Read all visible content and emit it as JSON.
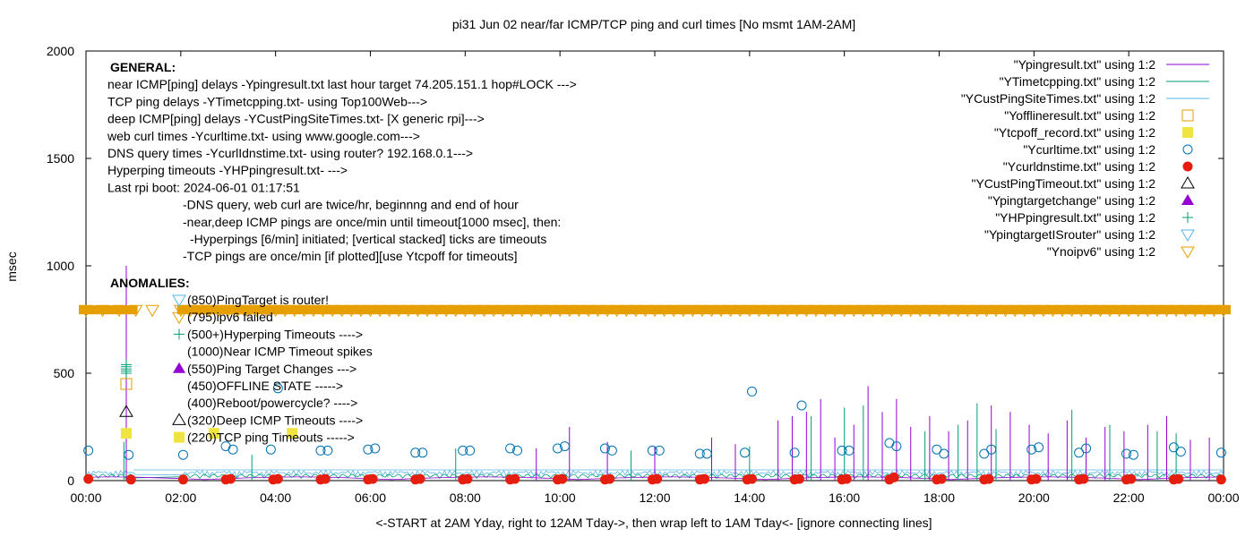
{
  "chart_data": {
    "type": "line",
    "title": "pi31 Jun 02  near/far ICMP/TCP ping and curl times [No msmt 1AM-2AM]",
    "xlabel": "<-START at 2AM Yday, right to 12AM Tday->, then wrap left to 1AM Tday<- [ignore connecting lines]",
    "ylabel": "msec",
    "xlim": [
      0,
      24
    ],
    "ylim": [
      0,
      2000
    ],
    "x_ticks": [
      "00:00",
      "02:00",
      "04:00",
      "06:00",
      "08:00",
      "10:00",
      "12:00",
      "14:00",
      "16:00",
      "18:00",
      "20:00",
      "22:00",
      "00:00"
    ],
    "y_ticks": [
      "0",
      "500",
      "1000",
      "1500",
      "2000"
    ],
    "legend_position": "top-right",
    "legend": [
      {
        "label": "\"Ypingresult.txt\" using 1:2",
        "kind": "line",
        "color": "#9400d3"
      },
      {
        "label": "\"YTimetcpping.txt\" using 1:2",
        "kind": "line",
        "color": "#009e73"
      },
      {
        "label": "\"YCustPingSiteTimes.txt\" using 1:2",
        "kind": "line",
        "color": "#56b4e9"
      },
      {
        "label": "\"Yofflineresult.txt\" using 1:2",
        "kind": "open-square",
        "color": "#e69f00"
      },
      {
        "label": "\"Ytcpoff_record.txt\" using 1:2",
        "kind": "filled-square",
        "color": "#f0e442"
      },
      {
        "label": "\"Ycurltime.txt\" using 1:2",
        "kind": "open-circle",
        "color": "#0072b2"
      },
      {
        "label": "\"Ycurldnstime.txt\" using 1:2",
        "kind": "filled-circle",
        "color": "#e51e10"
      },
      {
        "label": "\"YCustPingTimeout.txt\" using 1:2",
        "kind": "open-triangle",
        "color": "#000000"
      },
      {
        "label": "\"Ypingtargetchange\" using 1:2",
        "kind": "filled-triangle",
        "color": "#9400d3"
      },
      {
        "label": "\"YHPpingresult.txt\" using 1:2",
        "kind": "plus",
        "color": "#009e73"
      },
      {
        "label": "\"YpingtargetISrouter\" using 1:2",
        "kind": "open-down-triangle",
        "color": "#56b4e9"
      },
      {
        "label": "\"Ynoipv6\" using 1:2",
        "kind": "open-down-triangle",
        "color": "#e69f00"
      }
    ],
    "general_notes": [
      "GENERAL:",
      "near ICMP[ping] delays -Ypingresult.txt last hour target 74.205.151.1 hop#LOCK --->",
      "TCP ping delays -YTimetcpping.txt- using Top100Web--->",
      "deep ICMP[ping] delays -YCustPingSiteTimes.txt- [X generic rpi]--->",
      "web curl times -Ycurltime.txt- using www.google.com--->",
      "DNS query times -YcurlIdnstime.txt- using router? 192.168.0.1--->",
      "Hyperping timeouts -YHPpingresult.txt- --->",
      "Last rpi boot: 2024-06-01 01:17:51",
      "-DNS query, web curl are twice/hr, beginnng and end of hour",
      "-near,deep ICMP pings are once/min until timeout[1000 msec], then:",
      "-Hyperpings [6/min] initiated; [vertical stacked] ticks are timeouts",
      "-TCP pings are once/min [if plotted][use Ytcpoff for timeouts]"
    ],
    "anomalies_title": "ANOMALIES:",
    "anomalies": [
      {
        "text": "(850)PingTarget is router!",
        "marker": "open-down-triangle",
        "color": "#56b4e9"
      },
      {
        "text": "(795)ipv6 failed",
        "marker": "open-down-triangle",
        "color": "#e69f00"
      },
      {
        "text": "(500+)Hyperping Timeouts ---->",
        "marker": "plus",
        "color": "#009e73"
      },
      {
        "text": "(1000)Near ICMP Timeout spikes",
        "marker": "none",
        "color": "#9400d3"
      },
      {
        "text": "(550)Ping Target Changes --->",
        "marker": "filled-triangle",
        "color": "#9400d3"
      },
      {
        "text": "(450)OFFLINE STATE ----->",
        "marker": "none",
        "color": "#e69f00"
      },
      {
        "text": "(400)Reboot/powercycle? ---->",
        "marker": "none",
        "color": "#000000"
      },
      {
        "text": "(320)Deep ICMP Timeouts ---->",
        "marker": "open-triangle",
        "color": "#000000"
      },
      {
        "text": "(220)TCP ping Timeouts ----->",
        "marker": "filled-square",
        "color": "#f0e442"
      }
    ],
    "series_samples": {
      "noipv6_level": 795,
      "noipv6_x": [
        0.0,
        0.35,
        0.7,
        1.05,
        1.4,
        2.0,
        2.2,
        2.4,
        2.6,
        2.8,
        3.0,
        3.2,
        3.4,
        3.6,
        3.8,
        4.0,
        4.2,
        4.4,
        4.6,
        4.8,
        5.0,
        5.2,
        5.4,
        5.6,
        5.8,
        6.0,
        6.2,
        6.4,
        6.6,
        6.8,
        7.0,
        7.2,
        7.4,
        7.6,
        7.8,
        8.0,
        8.2,
        8.4,
        8.6,
        8.8,
        9.0,
        9.2,
        9.4,
        9.6,
        9.8,
        10.0,
        10.2,
        10.4,
        10.6,
        10.8,
        11.0,
        11.2,
        11.4,
        11.6,
        11.8,
        12.0,
        12.2,
        12.4,
        12.6,
        12.8,
        13.0,
        13.2,
        13.4,
        13.6,
        13.8,
        14.0,
        14.2,
        14.4,
        14.6,
        14.8,
        15.0,
        15.2,
        15.4,
        15.6,
        15.8,
        16.0,
        16.2,
        16.4,
        16.6,
        16.8,
        17.0,
        17.2,
        17.4,
        17.6,
        17.8,
        18.0,
        18.2,
        18.4,
        18.6,
        18.8,
        19.0,
        19.2,
        19.4,
        19.6,
        19.8,
        20.0,
        20.2,
        20.4,
        20.6,
        20.8,
        21.0,
        21.2,
        21.4,
        21.6,
        21.8,
        22.0,
        22.2,
        22.4,
        22.6,
        22.8,
        23.0,
        23.2,
        23.4,
        23.6,
        23.8,
        24.0
      ],
      "curl_points": [
        [
          0.05,
          140
        ],
        [
          0.9,
          120
        ],
        [
          2.05,
          120
        ],
        [
          2.95,
          160
        ],
        [
          3.1,
          145
        ],
        [
          3.9,
          145
        ],
        [
          4.05,
          430
        ],
        [
          4.95,
          140
        ],
        [
          5.1,
          140
        ],
        [
          5.95,
          145
        ],
        [
          6.1,
          150
        ],
        [
          6.95,
          130
        ],
        [
          7.1,
          130
        ],
        [
          7.95,
          140
        ],
        [
          8.1,
          140
        ],
        [
          8.95,
          150
        ],
        [
          9.1,
          140
        ],
        [
          9.95,
          150
        ],
        [
          10.1,
          160
        ],
        [
          10.95,
          150
        ],
        [
          11.1,
          140
        ],
        [
          11.95,
          140
        ],
        [
          12.1,
          140
        ],
        [
          12.95,
          125
        ],
        [
          13.1,
          125
        ],
        [
          13.9,
          130
        ],
        [
          14.05,
          415
        ],
        [
          14.95,
          130
        ],
        [
          15.1,
          350
        ],
        [
          15.95,
          140
        ],
        [
          16.1,
          140
        ],
        [
          16.95,
          175
        ],
        [
          17.1,
          160
        ],
        [
          17.95,
          145
        ],
        [
          18.1,
          125
        ],
        [
          18.95,
          125
        ],
        [
          19.1,
          145
        ],
        [
          19.95,
          145
        ],
        [
          20.1,
          155
        ],
        [
          20.95,
          130
        ],
        [
          21.1,
          150
        ],
        [
          21.95,
          125
        ],
        [
          22.1,
          120
        ],
        [
          22.95,
          155
        ],
        [
          23.1,
          135
        ],
        [
          23.95,
          130
        ]
      ],
      "dns_points": [
        [
          0.05,
          8
        ],
        [
          0.95,
          5
        ],
        [
          2.05,
          5
        ],
        [
          2.95,
          5
        ],
        [
          3.05,
          8
        ],
        [
          3.95,
          5
        ],
        [
          4.05,
          8
        ],
        [
          4.95,
          5
        ],
        [
          5.05,
          8
        ],
        [
          5.95,
          5
        ],
        [
          6.05,
          8
        ],
        [
          6.95,
          5
        ],
        [
          7.05,
          8
        ],
        [
          7.95,
          5
        ],
        [
          8.05,
          8
        ],
        [
          8.95,
          5
        ],
        [
          9.05,
          8
        ],
        [
          9.95,
          5
        ],
        [
          10.05,
          8
        ],
        [
          10.95,
          5
        ],
        [
          11.05,
          8
        ],
        [
          11.95,
          5
        ],
        [
          12.05,
          8
        ],
        [
          12.95,
          5
        ],
        [
          13.05,
          8
        ],
        [
          13.95,
          5
        ],
        [
          14.05,
          8
        ],
        [
          14.95,
          5
        ],
        [
          15.05,
          8
        ],
        [
          15.95,
          5
        ],
        [
          16.05,
          8
        ],
        [
          16.95,
          5
        ],
        [
          17.05,
          15
        ],
        [
          17.95,
          5
        ],
        [
          18.05,
          8
        ],
        [
          18.95,
          5
        ],
        [
          19.05,
          8
        ],
        [
          19.95,
          5
        ],
        [
          20.05,
          8
        ],
        [
          20.95,
          5
        ],
        [
          21.05,
          8
        ],
        [
          21.95,
          5
        ],
        [
          22.05,
          8
        ],
        [
          22.95,
          5
        ],
        [
          23.05,
          8
        ],
        [
          23.95,
          5
        ]
      ],
      "ping_spikes": [
        [
          0.85,
          1000
        ],
        [
          9.5,
          150
        ],
        [
          10.2,
          250
        ],
        [
          11.0,
          180
        ],
        [
          12.0,
          160
        ],
        [
          13.2,
          200
        ],
        [
          13.7,
          170
        ],
        [
          14.6,
          280
        ],
        [
          14.9,
          300
        ],
        [
          15.2,
          320
        ],
        [
          15.5,
          380
        ],
        [
          15.8,
          200
        ],
        [
          16.2,
          260
        ],
        [
          16.5,
          440
        ],
        [
          16.8,
          320
        ],
        [
          17.1,
          380
        ],
        [
          17.4,
          250
        ],
        [
          17.8,
          300
        ],
        [
          18.2,
          230
        ],
        [
          18.6,
          280
        ],
        [
          19.1,
          350
        ],
        [
          19.5,
          320
        ],
        [
          19.9,
          260
        ],
        [
          20.3,
          220
        ],
        [
          20.7,
          280
        ],
        [
          21.1,
          200
        ],
        [
          21.5,
          250
        ],
        [
          21.9,
          230
        ],
        [
          22.4,
          260
        ],
        [
          22.8,
          300
        ],
        [
          23.3,
          190
        ],
        [
          23.7,
          200
        ]
      ],
      "tcp_spikes": [
        [
          0.8,
          180
        ],
        [
          3.5,
          120
        ],
        [
          7.8,
          150
        ],
        [
          11.5,
          140
        ],
        [
          14.0,
          160
        ],
        [
          15.3,
          300
        ],
        [
          16.0,
          340
        ],
        [
          16.4,
          350
        ],
        [
          17.7,
          230
        ],
        [
          18.4,
          260
        ],
        [
          18.8,
          360
        ],
        [
          19.2,
          240
        ],
        [
          20.8,
          330
        ],
        [
          21.6,
          260
        ],
        [
          22.6,
          230
        ],
        [
          23.0,
          220
        ]
      ],
      "hyperping_x": 0.85,
      "hyperping_y": [
        500,
        510,
        520,
        530,
        540
      ],
      "offline_point": [
        0.85,
        450
      ],
      "cust_timeout_point": [
        0.85,
        320
      ],
      "tcpoff_points": [
        [
          0.85,
          220
        ],
        [
          2.7,
          220
        ],
        [
          4.35,
          220
        ]
      ]
    }
  }
}
